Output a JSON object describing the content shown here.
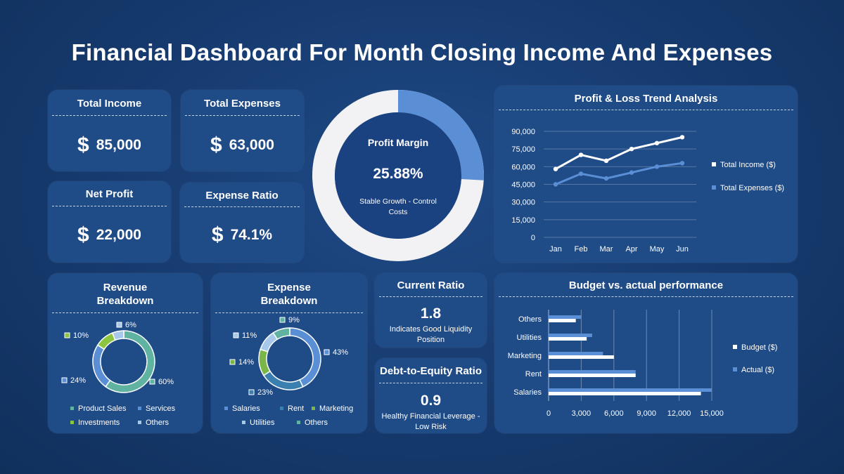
{
  "title": "Financial Dashboard For Month Closing Income And Expenses",
  "kpis": {
    "total_income": {
      "label": "Total Income",
      "symbol": "$",
      "value": "85,000"
    },
    "total_expenses": {
      "label": "Total Expenses",
      "symbol": "$",
      "value": "63,000"
    },
    "net_profit": {
      "label": "Net Profit",
      "symbol": "$",
      "value": "22,000"
    },
    "expense_ratio": {
      "label": "Expense Ratio",
      "symbol": "$",
      "value": "74.1%"
    }
  },
  "profit_margin": {
    "label": "Profit Margin",
    "value": "25.88%",
    "note": "Stable Growth - Control Costs",
    "fraction": 0.2588
  },
  "current_ratio": {
    "label": "Current Ratio",
    "value": "1.8",
    "note": "Indicates Good Liquidity Position"
  },
  "debt_equity": {
    "label": "Debt-to-Equity Ratio",
    "value": "0.9",
    "note": "Healthy Financial Leverage - Low Risk"
  },
  "colors": {
    "accent": "#5a8fd6",
    "card": "#1f4b87",
    "white_line": "#ffffff",
    "sales": "#5fb3a0",
    "services": "#5a8fd6",
    "investments": "#8cc63f",
    "others": "#a8c8ea",
    "rent": "#3a7fb0",
    "marketing": "#7ab648",
    "utilities": "#a8c8ea",
    "exp_others": "#5fb3a0"
  },
  "chart_data": [
    {
      "type": "line",
      "title": "Profit & Loss Trend Analysis",
      "categories": [
        "Jan",
        "Feb",
        "Mar",
        "Apr",
        "May",
        "Jun"
      ],
      "series": [
        {
          "name": "Total Income ($)",
          "values": [
            58000,
            70000,
            65000,
            75000,
            80000,
            85000
          ]
        },
        {
          "name": "Total Expenses ($)",
          "values": [
            45000,
            54000,
            50000,
            55000,
            60000,
            63000
          ]
        }
      ],
      "ylim": [
        0,
        90000
      ],
      "yticks": [
        "0",
        "15,000",
        "30,000",
        "45,000",
        "60,000",
        "75,000",
        "90,000"
      ],
      "ytick_values": [
        0,
        15000,
        30000,
        45000,
        60000,
        75000,
        90000
      ],
      "grid": true,
      "legend": "right"
    },
    {
      "type": "bar",
      "orientation": "horizontal",
      "title": "Budget vs. actual performance",
      "categories": [
        "Salaries",
        "Rent",
        "Marketing",
        "Utilities",
        "Others"
      ],
      "series": [
        {
          "name": "Budget ($)",
          "values": [
            14000,
            8000,
            6000,
            3500,
            2500
          ]
        },
        {
          "name": "Actual ($)",
          "values": [
            15000,
            8000,
            5000,
            4000,
            3000
          ]
        }
      ],
      "xlim": [
        0,
        15000
      ],
      "xticks": [
        "0",
        "3,000",
        "6,000",
        "9,000",
        "12,000",
        "15,000"
      ],
      "xtick_values": [
        0,
        3000,
        6000,
        9000,
        12000,
        15000
      ],
      "grid": true,
      "legend": "right"
    },
    {
      "type": "pie",
      "donut": true,
      "title": "Revenue Breakdown",
      "categories": [
        "Product Sales",
        "Services",
        "Investments",
        "Others"
      ],
      "values": [
        60,
        24,
        10,
        6
      ],
      "labels": [
        "60%",
        "24%",
        "10%",
        "6%"
      ]
    },
    {
      "type": "pie",
      "donut": true,
      "title": "Expense Breakdown",
      "categories": [
        "Salaries",
        "Rent",
        "Marketing",
        "Utilities",
        "Others"
      ],
      "values": [
        43,
        23,
        14,
        11,
        9
      ],
      "labels": [
        "43%",
        "23%",
        "14%",
        "11%",
        "9%"
      ]
    }
  ]
}
